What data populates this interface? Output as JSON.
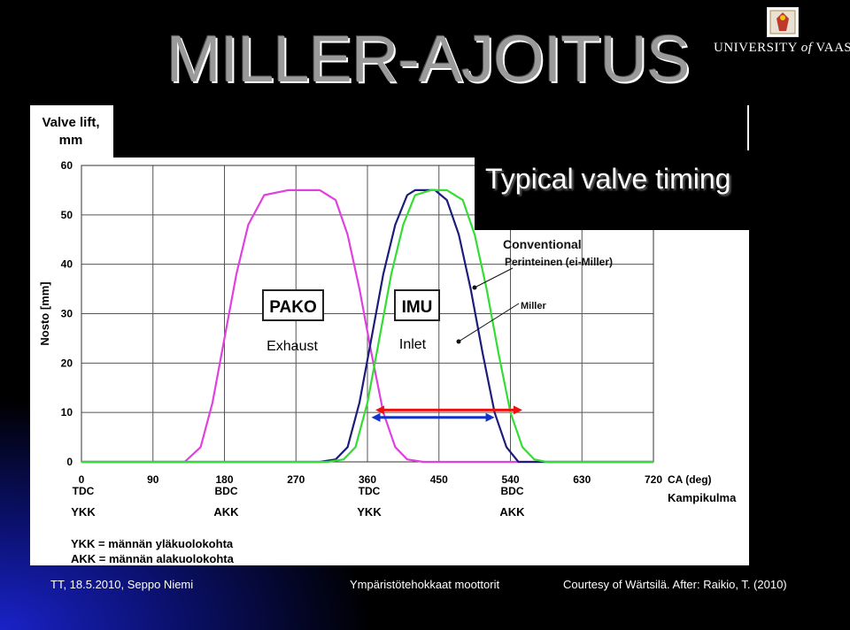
{
  "slide": {
    "title": "MILLER-AJOITUS",
    "logo_text_a": "UNIVERSITY ",
    "logo_text_of": "of",
    "logo_text_b": " VAASA",
    "chart_heading": "Typical valve timing",
    "footer_left": "TT, 18.5.2010, Seppo Niemi",
    "footer_center": "Ympäristötehokkaat moottorit",
    "footer_right": "Courtesy of Wärtsilä. After: Raikio, T. (2010)"
  },
  "colors": {
    "exhaust": "#e040e0",
    "conventional": "#33dd33",
    "miller": "#1c1c7a",
    "arrow_red": "#ee1111",
    "arrow_blue": "#1133cc"
  },
  "chart_data": {
    "type": "line",
    "ylabel_en": "Valve lift, mm",
    "ylabel_fi": "Nosto [mm]",
    "xlabel_en": "CA (deg)",
    "xlabel_fi": "Kampikulma",
    "xlim": [
      0,
      720
    ],
    "ylim": [
      0,
      60
    ],
    "xticks": [
      0,
      90,
      180,
      270,
      360,
      450,
      540,
      630,
      720
    ],
    "yticks": [
      0,
      10,
      20,
      30,
      40,
      50,
      60
    ],
    "grid": true,
    "dead_centres": [
      {
        "x": 0,
        "code": "TDC",
        "fi": "YKK"
      },
      {
        "x": 180,
        "code": "BDC",
        "fi": "AKK"
      },
      {
        "x": 360,
        "code": "TDC",
        "fi": "YKK"
      },
      {
        "x": 540,
        "code": "BDC",
        "fi": "AKK"
      }
    ],
    "series": [
      {
        "name": "Exhaust",
        "x": [
          0,
          100,
          130,
          150,
          165,
          180,
          195,
          210,
          230,
          260,
          300,
          320,
          335,
          350,
          365,
          380,
          395,
          410,
          430,
          720
        ],
        "y": [
          0,
          0,
          0,
          3,
          12,
          25,
          38,
          48,
          54,
          55,
          55,
          53,
          46,
          35,
          22,
          10,
          3,
          0.5,
          0,
          0
        ]
      },
      {
        "name": "Miller",
        "x": [
          0,
          300,
          320,
          335,
          350,
          365,
          380,
          395,
          410,
          420,
          430,
          445,
          460,
          475,
          490,
          505,
          520,
          535,
          550,
          720
        ],
        "y": [
          0,
          0,
          0.5,
          3,
          12,
          25,
          38,
          48,
          54,
          55,
          55,
          55,
          53,
          46,
          35,
          22,
          10,
          3,
          0,
          0
        ]
      },
      {
        "name": "Conventional",
        "x": [
          0,
          310,
          330,
          345,
          360,
          375,
          390,
          405,
          420,
          440,
          460,
          480,
          495,
          510,
          525,
          540,
          555,
          570,
          585,
          720
        ],
        "y": [
          0,
          0,
          0.5,
          3,
          12,
          25,
          38,
          48,
          54,
          55,
          55,
          53,
          46,
          35,
          22,
          10,
          3,
          0.5,
          0,
          0
        ]
      }
    ],
    "labels": {
      "pako": "PAKO",
      "imu": "IMU",
      "exhaust": "Exhaust",
      "inlet": "Inlet",
      "conventional": "Conventional",
      "perinteinen": "Perinteinen (ei-Miller)",
      "miller": "Miller"
    },
    "arrows": [
      {
        "name": "conventional-duration",
        "from": 370,
        "to": 555,
        "y": 10.5
      },
      {
        "name": "miller-duration",
        "from": 365,
        "to": 520,
        "y": 9
      }
    ],
    "legend_notes": [
      "YKK = männän yläkuolokohta",
      "AKK = männän alakuolokohta"
    ]
  }
}
